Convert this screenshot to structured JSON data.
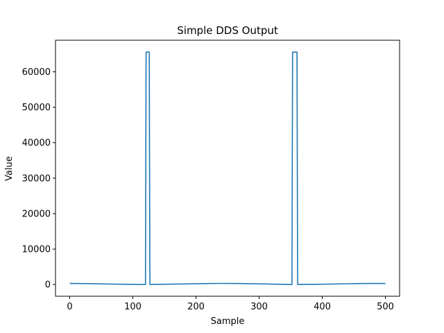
{
  "chart_data": {
    "type": "line",
    "title": "Simple DDS Output",
    "xlabel": "Sample",
    "ylabel": "Value",
    "xlim": [
      -22.5,
      522.5
    ],
    "ylim": [
      -3300,
      68900
    ],
    "x_ticks": [
      0,
      100,
      200,
      300,
      400,
      500
    ],
    "y_ticks": [
      0,
      10000,
      20000,
      30000,
      40000,
      50000,
      60000
    ],
    "grid": false,
    "legend": "none",
    "series": [
      {
        "color": "#1f77b4",
        "x": [
          0,
          30,
          60,
          90,
          120,
          121,
          122,
          126,
          127,
          128,
          150,
          180,
          210,
          240,
          270,
          300,
          330,
          352,
          353,
          354,
          360,
          361,
          362,
          390,
          420,
          450,
          480,
          500
        ],
        "y": [
          300,
          250,
          150,
          60,
          20,
          65535,
          65535,
          65535,
          20,
          20,
          80,
          170,
          260,
          320,
          280,
          190,
          90,
          20,
          65535,
          65535,
          65535,
          20,
          20,
          70,
          150,
          250,
          310,
          290
        ]
      }
    ]
  }
}
